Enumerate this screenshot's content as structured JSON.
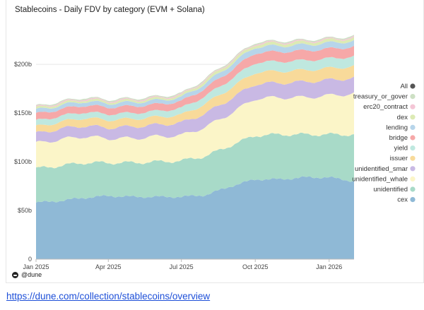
{
  "chart_data": {
    "type": "area",
    "stacked": true,
    "title": "Stablecoins - Daily FDV by category (EVM + Solana)",
    "xlabel": "",
    "ylabel": "",
    "x_ticks": [
      "Jan 2025",
      "Apr 2025",
      "Jul 2025",
      "Oct 2025",
      "Jan 2026"
    ],
    "y_ticks": [
      "0",
      "$50b",
      "$100b",
      "$150b",
      "$200b"
    ],
    "ylim": [
      0,
      240
    ],
    "legend_position": "right",
    "x": [
      "2025-01-01",
      "2025-02-01",
      "2025-03-01",
      "2025-04-01",
      "2025-05-01",
      "2025-06-01",
      "2025-07-01",
      "2025-08-01",
      "2025-09-01",
      "2025-10-01",
      "2025-11-01",
      "2025-12-01",
      "2026-01-01",
      "2026-02-01"
    ],
    "series": [
      {
        "name": "cex",
        "color": "#8fb9d6",
        "values": [
          58,
          60,
          63,
          65,
          64,
          64,
          64,
          66,
          75,
          82,
          82,
          84,
          84,
          80
        ]
      },
      {
        "name": "unidentified",
        "color": "#a8dac8",
        "values": [
          35,
          36,
          36,
          34,
          35,
          36,
          37,
          40,
          42,
          45,
          46,
          44,
          44,
          48
        ]
      },
      {
        "name": "unidentified_whale",
        "color": "#fbf5c8",
        "values": [
          26,
          27,
          27,
          25,
          25,
          26,
          26,
          30,
          33,
          38,
          38,
          38,
          40,
          42
        ]
      },
      {
        "name": "unidentified_smart_contract",
        "color": "#c9b9e4",
        "values": [
          10,
          11,
          11,
          11,
          12,
          12,
          13,
          14,
          15,
          15,
          15,
          16,
          16,
          16
        ]
      },
      {
        "name": "issuer",
        "color": "#f8da9a",
        "values": [
          7,
          7,
          8,
          8,
          8,
          8,
          8,
          10,
          11,
          12,
          12,
          12,
          12,
          12
        ]
      },
      {
        "name": "yield",
        "color": "#bfe8df",
        "values": [
          6,
          6,
          6,
          6,
          6,
          6,
          7,
          8,
          9,
          10,
          10,
          10,
          10,
          10
        ]
      },
      {
        "name": "bridge",
        "color": "#f6a8a8",
        "values": [
          7,
          7,
          7,
          7,
          7,
          7,
          7,
          8,
          9,
          10,
          10,
          10,
          10,
          10
        ]
      },
      {
        "name": "lending",
        "color": "#b7d5ea",
        "values": [
          4,
          4,
          4,
          4,
          4,
          4,
          4,
          5,
          6,
          6,
          6,
          6,
          6,
          6
        ]
      },
      {
        "name": "dex",
        "color": "#dceab4",
        "values": [
          2,
          2,
          2,
          2,
          2,
          2,
          2,
          3,
          3,
          3,
          3,
          3,
          3,
          3
        ]
      },
      {
        "name": "erc20_contract",
        "color": "#f4c6d6",
        "values": [
          1,
          1,
          1,
          1,
          1,
          1,
          1,
          1,
          1,
          1,
          1,
          1,
          1,
          1
        ]
      },
      {
        "name": "treasury_or_governance",
        "color": "#cde0c4",
        "values": [
          1,
          1,
          1,
          1,
          1,
          1,
          1,
          1,
          1,
          1,
          1,
          1,
          1,
          1
        ]
      }
    ],
    "legend": [
      {
        "label": "All",
        "color": "#555555"
      },
      {
        "label": "treasury_or_gover",
        "color": "#cde0c4"
      },
      {
        "label": "erc20_contract",
        "color": "#f4c6d6"
      },
      {
        "label": "dex",
        "color": "#dceab4"
      },
      {
        "label": "lending",
        "color": "#b7d5ea"
      },
      {
        "label": "bridge",
        "color": "#f6a8a8"
      },
      {
        "label": "yield",
        "color": "#bfe8df"
      },
      {
        "label": "issuer",
        "color": "#f8da9a"
      },
      {
        "label": "unidentified_smar",
        "color": "#c9b9e4"
      },
      {
        "label": "unidentified_whale",
        "color": "#fbf5c8"
      },
      {
        "label": "unidentified",
        "color": "#a8dac8"
      },
      {
        "label": "cex",
        "color": "#8fb9d6"
      }
    ]
  },
  "brand": {
    "label": "@dune"
  },
  "link": {
    "text": "https://dune.com/collection/stablecoins/overview"
  }
}
